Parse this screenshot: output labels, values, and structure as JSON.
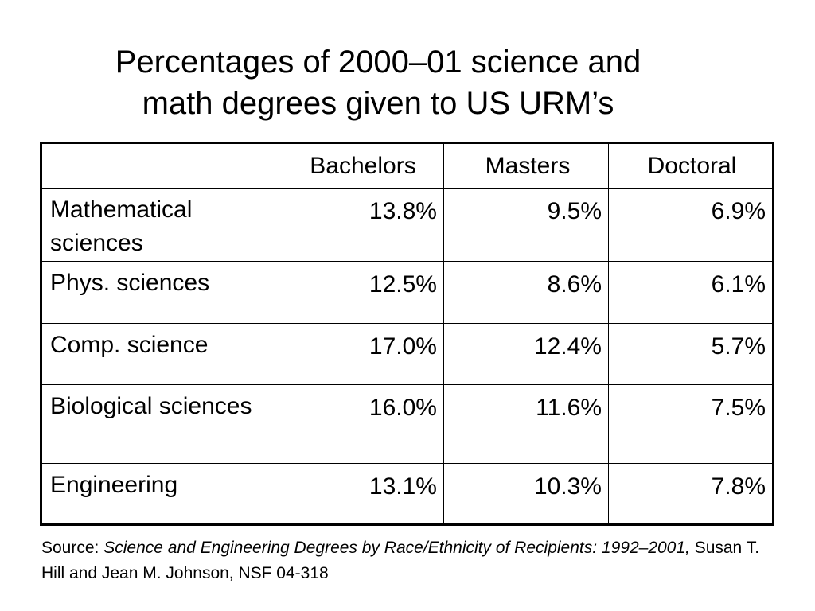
{
  "title": {
    "line1": "Percentages of  2000–01 science and",
    "line2": "math degrees given to  US URM’s"
  },
  "table": {
    "headers": [
      "",
      "Bachelors",
      "Masters",
      "Doctoral"
    ],
    "rows": [
      {
        "category": "Mathematical sciences",
        "bachelors": "13.8%",
        "masters": "9.5%",
        "doctoral": "6.9%"
      },
      {
        "category": "Phys. sciences",
        "bachelors": "12.5%",
        "masters": "8.6%",
        "doctoral": "6.1%"
      },
      {
        "category": "Comp. science",
        "bachelors": "17.0%",
        "masters": "12.4%",
        "doctoral": "5.7%"
      },
      {
        "category": "Biological sciences",
        "bachelors": "16.0%",
        "masters": "11.6%",
        "doctoral": "7.5%"
      },
      {
        "category": "Engineering",
        "bachelors": "13.1%",
        "masters": "10.3%",
        "doctoral": "7.8%"
      }
    ]
  },
  "source": {
    "prefix": "Source: ",
    "italic": "Science and Engineering Degrees by Race/Ethnicity of Recipients: 1992–2001,",
    "rest": " Susan T. Hill and Jean M. Johnson, NSF 04-318"
  }
}
